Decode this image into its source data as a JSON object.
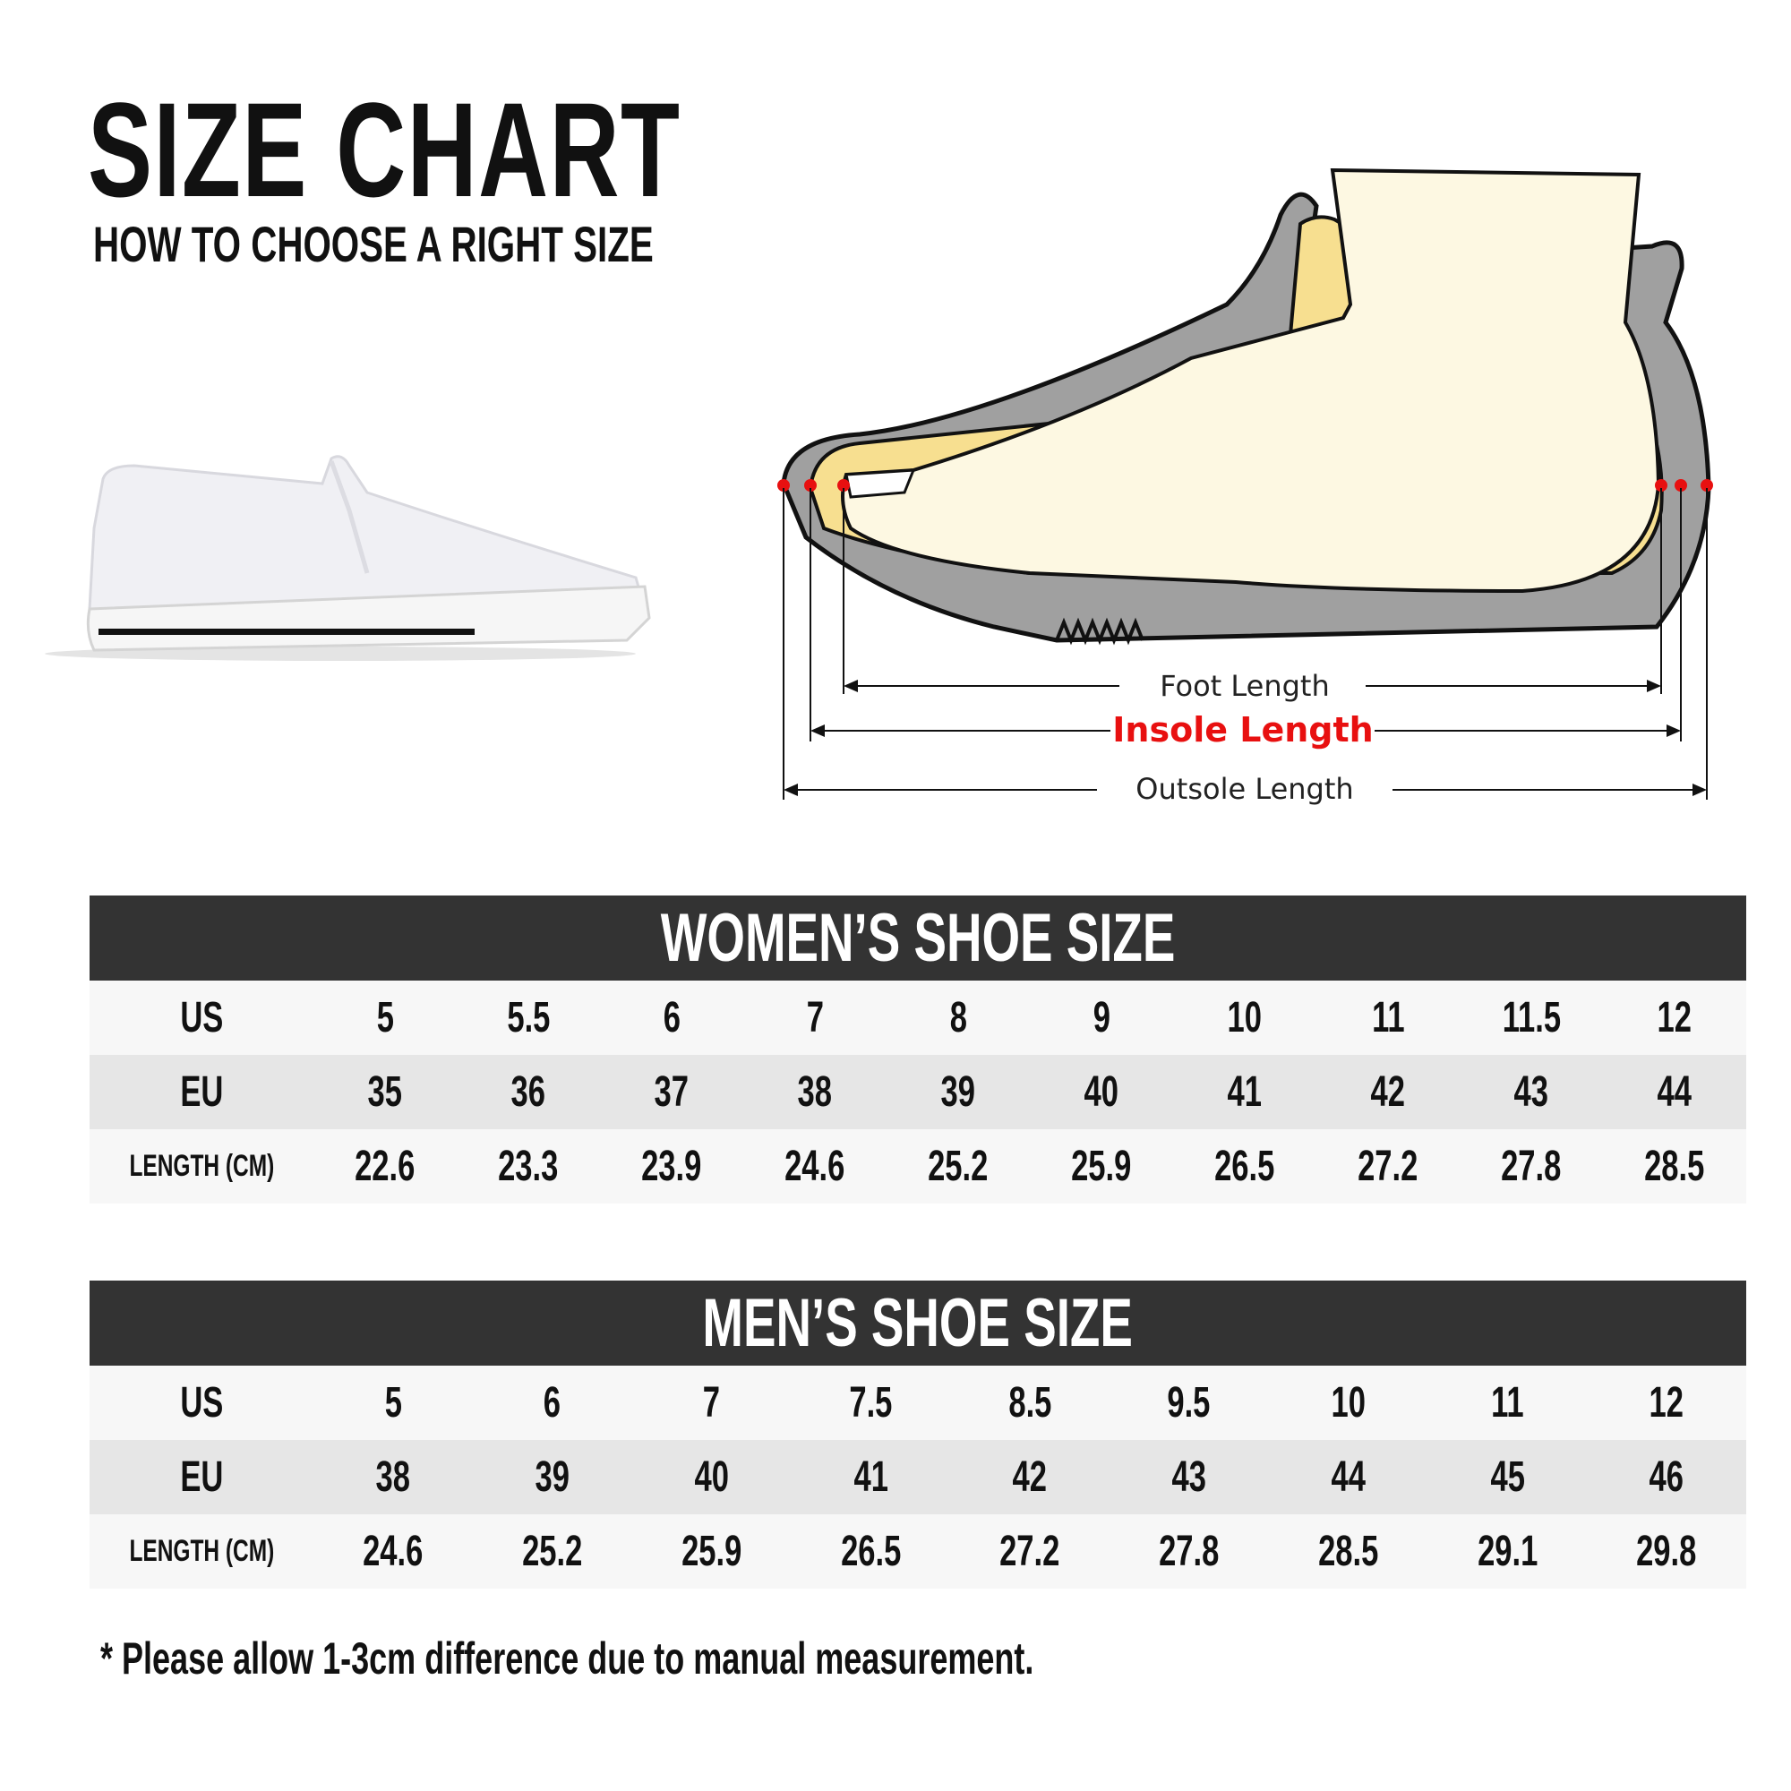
{
  "header": {
    "title": "SIZE CHART",
    "subtitle": "HOW TO CHOOSE A RIGHT SIZE"
  },
  "diagram": {
    "labels": {
      "foot": "Foot Length",
      "insole": "Insole Length",
      "outsole": "Outsole Length"
    },
    "colors": {
      "insole_label": "#e81010",
      "marker": "#e81010",
      "sole": "#a0a0a0",
      "foot": "#fdf8e2",
      "insole": "#f7df90"
    }
  },
  "women": {
    "title": "WOMEN’S SHOE SIZE",
    "row_labels": [
      "US",
      "EU",
      "LENGTH (CM)"
    ],
    "us": [
      "5",
      "5.5",
      "6",
      "7",
      "8",
      "9",
      "10",
      "11",
      "11.5",
      "12"
    ],
    "eu": [
      "35",
      "36",
      "37",
      "38",
      "39",
      "40",
      "41",
      "42",
      "43",
      "44"
    ],
    "length": [
      "22.6",
      "23.3",
      "23.9",
      "24.6",
      "25.2",
      "25.9",
      "26.5",
      "27.2",
      "27.8",
      "28.5"
    ]
  },
  "men": {
    "title": "MEN’S SHOE SIZE",
    "row_labels": [
      "US",
      "EU",
      "LENGTH (CM)"
    ],
    "us": [
      "5",
      "6",
      "7",
      "7.5",
      "8.5",
      "9.5",
      "10",
      "11",
      "12"
    ],
    "eu": [
      "38",
      "39",
      "40",
      "41",
      "42",
      "43",
      "44",
      "45",
      "46"
    ],
    "length": [
      "24.6",
      "25.2",
      "25.9",
      "26.5",
      "27.2",
      "27.8",
      "28.5",
      "29.1",
      "29.8"
    ]
  },
  "footnote": "* Please allow 1-3cm difference due to manual measurement."
}
